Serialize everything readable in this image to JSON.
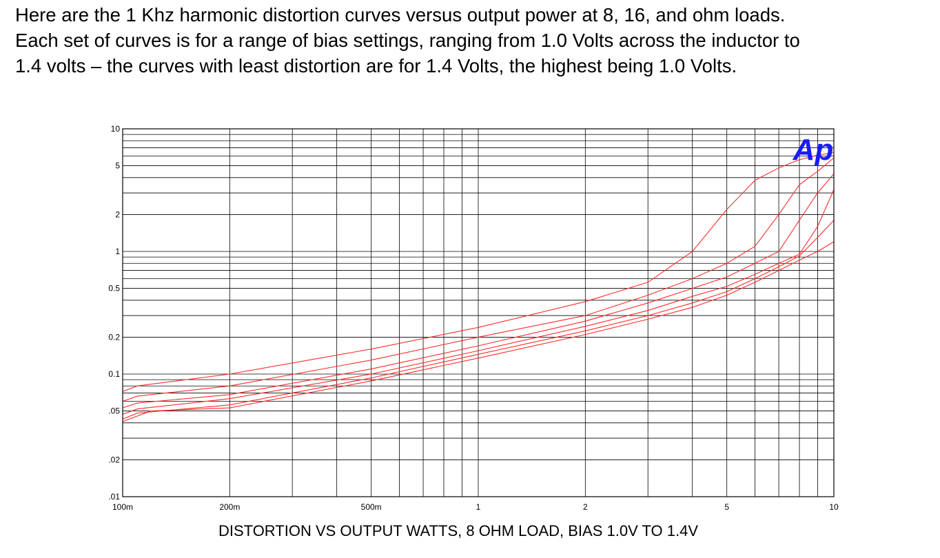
{
  "intro": {
    "line1": "Here are the 1 Khz harmonic distortion curves versus output power at 8, 16, and ohm loads.",
    "line2": "Each set of curves is for a range of bias settings, ranging from 1.0 Volts across the inductor to",
    "line3": "1.4 volts – the curves with least distortion are for 1.4 Volts, the highest being 1.0 Volts."
  },
  "logo": {
    "text": "Ap",
    "color": "#1a1aff"
  },
  "colors": {
    "curve": "#ff2a2a",
    "grid": "#000000",
    "background": "#ffffff"
  },
  "chart_data": {
    "type": "line",
    "title": "DISTORTION VS OUTPUT WATTS, 8 OHM LOAD, BIAS 1.0V TO 1.4V",
    "x_scale": "log",
    "y_scale": "log",
    "xlim": [
      0.1,
      10
    ],
    "ylim": [
      0.01,
      10
    ],
    "grid": true,
    "x_ticks": [
      {
        "value": 0.1,
        "label": "100m"
      },
      {
        "value": 0.2,
        "label": "200m"
      },
      {
        "value": 0.5,
        "label": "500m"
      },
      {
        "value": 1,
        "label": "1"
      },
      {
        "value": 2,
        "label": "2"
      },
      {
        "value": 5,
        "label": "5"
      },
      {
        "value": 10,
        "label": "10"
      }
    ],
    "y_ticks": [
      {
        "value": 10,
        "label": "10"
      },
      {
        "value": 5,
        "label": "5"
      },
      {
        "value": 2,
        "label": "2"
      },
      {
        "value": 1,
        "label": "1"
      },
      {
        "value": 0.5,
        "label": "0.5"
      },
      {
        "value": 0.2,
        "label": "0.2"
      },
      {
        "value": 0.1,
        "label": "0.1"
      },
      {
        "value": 0.05,
        "label": ".05"
      },
      {
        "value": 0.02,
        "label": ".02"
      },
      {
        "value": 0.01,
        "label": ".01"
      }
    ],
    "series": [
      {
        "points": [
          [
            0.1,
            0.072
          ],
          [
            0.11,
            0.08
          ],
          [
            0.2,
            0.1
          ],
          [
            0.5,
            0.16
          ],
          [
            1,
            0.24
          ],
          [
            2,
            0.39
          ],
          [
            3,
            0.56
          ],
          [
            4,
            1.0
          ],
          [
            5,
            2.2
          ],
          [
            6,
            3.8
          ],
          [
            7,
            4.8
          ],
          [
            8,
            5.6
          ],
          [
            9,
            6.1
          ],
          [
            10,
            6.4
          ]
        ]
      },
      {
        "points": [
          [
            0.1,
            0.06
          ],
          [
            0.11,
            0.066
          ],
          [
            0.2,
            0.08
          ],
          [
            0.5,
            0.13
          ],
          [
            1,
            0.2
          ],
          [
            2,
            0.3
          ],
          [
            3,
            0.44
          ],
          [
            4,
            0.6
          ],
          [
            5,
            0.8
          ],
          [
            6,
            1.1
          ],
          [
            7,
            2.0
          ],
          [
            8,
            3.5
          ],
          [
            9,
            4.5
          ],
          [
            10,
            5.8
          ]
        ]
      },
      {
        "points": [
          [
            0.1,
            0.053
          ],
          [
            0.11,
            0.058
          ],
          [
            0.2,
            0.068
          ],
          [
            0.5,
            0.11
          ],
          [
            1,
            0.17
          ],
          [
            2,
            0.27
          ],
          [
            3,
            0.38
          ],
          [
            4,
            0.5
          ],
          [
            5,
            0.62
          ],
          [
            6,
            0.8
          ],
          [
            7,
            1.0
          ],
          [
            8,
            1.8
          ],
          [
            9,
            3.0
          ],
          [
            10,
            4.3
          ]
        ]
      },
      {
        "points": [
          [
            0.1,
            0.047
          ],
          [
            0.11,
            0.052
          ],
          [
            0.2,
            0.063
          ],
          [
            0.5,
            0.1
          ],
          [
            1,
            0.155
          ],
          [
            2,
            0.245
          ],
          [
            3,
            0.33
          ],
          [
            4,
            0.43
          ],
          [
            5,
            0.52
          ],
          [
            6,
            0.65
          ],
          [
            7,
            0.8
          ],
          [
            8,
            0.95
          ],
          [
            9,
            1.6
          ],
          [
            10,
            3.2
          ]
        ]
      },
      {
        "points": [
          [
            0.1,
            0.043
          ],
          [
            0.11,
            0.048
          ],
          [
            0.2,
            0.056
          ],
          [
            0.5,
            0.093
          ],
          [
            1,
            0.145
          ],
          [
            2,
            0.225
          ],
          [
            3,
            0.3
          ],
          [
            4,
            0.38
          ],
          [
            5,
            0.47
          ],
          [
            6,
            0.6
          ],
          [
            7,
            0.75
          ],
          [
            8,
            0.92
          ],
          [
            9,
            1.3
          ],
          [
            10,
            1.8
          ]
        ]
      },
      {
        "points": [
          [
            0.1,
            0.041
          ],
          [
            0.12,
            0.05
          ],
          [
            0.2,
            0.053
          ],
          [
            0.5,
            0.088
          ],
          [
            1,
            0.135
          ],
          [
            2,
            0.21
          ],
          [
            3,
            0.28
          ],
          [
            4,
            0.35
          ],
          [
            5,
            0.44
          ],
          [
            6,
            0.56
          ],
          [
            7,
            0.7
          ],
          [
            8,
            0.85
          ],
          [
            9,
            1.0
          ],
          [
            10,
            1.2
          ]
        ]
      }
    ]
  }
}
